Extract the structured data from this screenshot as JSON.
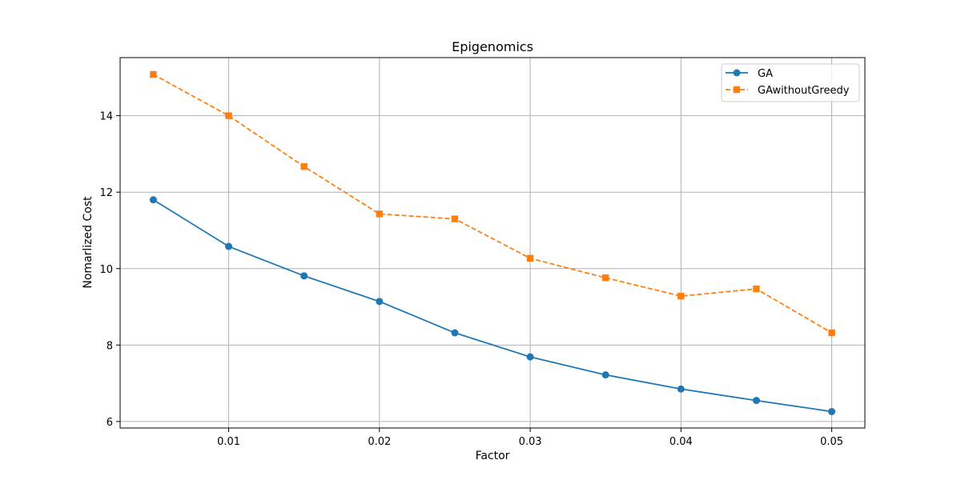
{
  "chart_data": {
    "type": "line",
    "title": "Epigenomics",
    "xlabel": "Factor",
    "ylabel": "Nomarlized Cost",
    "x": [
      0.005,
      0.01,
      0.015,
      0.02,
      0.025,
      0.03,
      0.035,
      0.04,
      0.045,
      0.05
    ],
    "series": [
      {
        "name": "GA",
        "values": [
          11.8,
          10.58,
          9.81,
          9.14,
          8.32,
          7.69,
          7.22,
          6.85,
          6.55,
          6.26
        ],
        "color": "#1f77b4",
        "line_style": "solid",
        "marker": "circle"
      },
      {
        "name": "GAwithoutGreedy",
        "values": [
          15.08,
          14.0,
          12.67,
          11.43,
          11.3,
          10.27,
          9.76,
          9.28,
          9.47,
          8.32
        ],
        "color": "#ff7f0e",
        "line_style": "dashed",
        "marker": "square"
      }
    ],
    "xlim": [
      0.0028,
      0.0522
    ],
    "ylim": [
      5.83,
      15.52
    ],
    "x_ticks": [
      0.01,
      0.02,
      0.03,
      0.04,
      0.05
    ],
    "x_tick_labels": [
      "0.01",
      "0.02",
      "0.03",
      "0.04",
      "0.05"
    ],
    "y_ticks": [
      6,
      8,
      10,
      12,
      14
    ],
    "y_tick_labels": [
      "6",
      "8",
      "10",
      "12",
      "14"
    ],
    "grid": true,
    "legend_position": "top-right"
  }
}
